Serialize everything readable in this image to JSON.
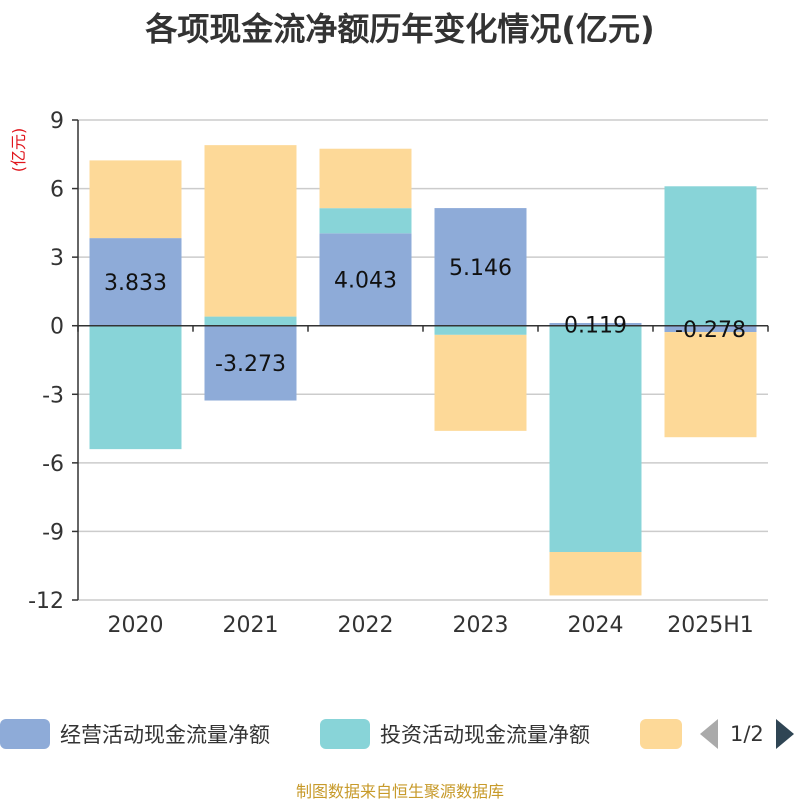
{
  "title": "各项现金流净额历年变化情况(亿元)",
  "unit_label": "(亿元)",
  "source": "制图数据来自恒生聚源数据库",
  "pager": {
    "text": "1/2"
  },
  "colors": {
    "operating": "#8eabd8",
    "investing": "#88d4d8",
    "financing": "#fdd998"
  },
  "chart_data": {
    "type": "bar",
    "stacked": true,
    "title": "各项现金流净额历年变化情况(亿元)",
    "ylabel": "(亿元)",
    "categories": [
      "2020",
      "2021",
      "2022",
      "2023",
      "2024",
      "2025H1"
    ],
    "ylim": [
      -12,
      9
    ],
    "yticks": [
      9,
      6,
      3,
      0,
      -3,
      -6,
      -9,
      -12
    ],
    "grid": true,
    "legend_position": "bottom",
    "series": [
      {
        "name": "经营活动现金流量净额",
        "color": "#8eabd8",
        "values": [
          3.833,
          -3.273,
          4.043,
          5.146,
          0.119,
          -0.278
        ],
        "labels": [
          "3.833",
          "-3.273",
          "4.043",
          "5.146",
          "0.119",
          "-0.278"
        ]
      },
      {
        "name": "投资活动现金流量净额",
        "color": "#88d4d8",
        "values": [
          -5.4,
          0.4,
          1.1,
          -0.4,
          -9.9,
          6.1
        ]
      },
      {
        "name": "",
        "color": "#fdd998",
        "values": [
          3.4,
          7.5,
          2.6,
          -4.2,
          -1.9,
          -4.6
        ]
      }
    ]
  }
}
